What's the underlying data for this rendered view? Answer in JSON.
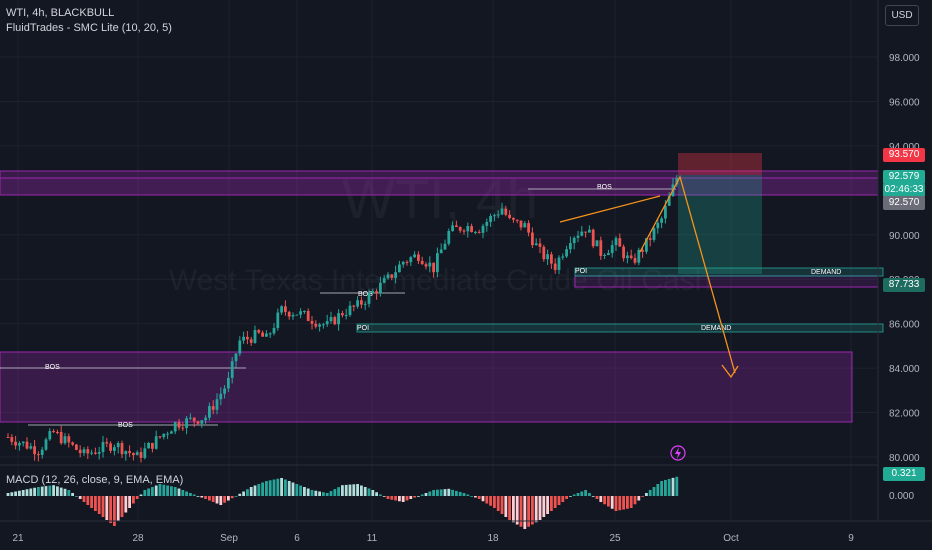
{
  "header": {
    "symbol_line": "WTI, 4h, BLACKBULL",
    "indicator_line": "FluidTrades - SMC Lite  (10, 20, 5)",
    "macd_line": "MACD (12, 26, close, 9, EMA, EMA)",
    "currency_button": "USD"
  },
  "watermark": {
    "main": "WTI, 4h",
    "sub": "West Texas Intermediate Crude Oil Cash"
  },
  "colors": {
    "background": "#131722",
    "up": "#26a69a",
    "down": "#ef5350",
    "zone": "#9c27b0",
    "annotation": "#f7931a",
    "target": "#22ab94",
    "stop": "#f23645"
  },
  "labels": {
    "bos": "BOS",
    "poi": "POI",
    "demand": "DEMAND"
  },
  "price_labels": {
    "stop": "93.570",
    "last_price": "92.579",
    "countdown": "02:46:33",
    "prev": "92.570",
    "demand": "87.733",
    "macd": "0.321"
  },
  "chart_data": {
    "type": "candlestick",
    "y_axis": {
      "ticks": [
        "98.000",
        "96.000",
        "94.000",
        "90.000",
        "88.000",
        "86.000",
        "84.000",
        "82.000",
        "80.000"
      ],
      "range": [
        79.6,
        100.5
      ]
    },
    "x_axis": {
      "ticks": [
        "21",
        "28",
        "Sep",
        "6",
        "11",
        "18",
        "25",
        "Oct",
        "9"
      ]
    },
    "macd": {
      "ticks": [
        "0.000"
      ],
      "last": 0.321
    },
    "trend": [
      {
        "d": 0,
        "p": 80.9
      },
      {
        "d": 2,
        "p": 80.3
      },
      {
        "d": 3,
        "p": 81.1
      },
      {
        "d": 5,
        "p": 80.1
      },
      {
        "d": 7,
        "p": 80.6
      },
      {
        "d": 8.5,
        "p": 80.0
      },
      {
        "d": 11,
        "p": 81.5
      },
      {
        "d": 13,
        "p": 81.8
      },
      {
        "d": 14.5,
        "p": 83.4
      },
      {
        "d": 15.2,
        "p": 85.2
      },
      {
        "d": 16.5,
        "p": 85.5
      },
      {
        "d": 17,
        "p": 85.3
      },
      {
        "d": 18,
        "p": 86.6
      },
      {
        "d": 19,
        "p": 86.5
      },
      {
        "d": 20,
        "p": 86.2
      },
      {
        "d": 21,
        "p": 85.9
      },
      {
        "d": 22,
        "p": 86.5
      },
      {
        "d": 23,
        "p": 86.8
      },
      {
        "d": 25,
        "p": 88.0
      },
      {
        "d": 26,
        "p": 88.8
      },
      {
        "d": 27,
        "p": 89.1
      },
      {
        "d": 28,
        "p": 88.5
      },
      {
        "d": 29,
        "p": 90.1
      },
      {
        "d": 30,
        "p": 90.4
      },
      {
        "d": 31,
        "p": 90.3
      },
      {
        "d": 32.5,
        "p": 91.2
      },
      {
        "d": 33,
        "p": 90.6
      },
      {
        "d": 34,
        "p": 90.4
      },
      {
        "d": 35,
        "p": 89.2
      },
      {
        "d": 36,
        "p": 88.6
      },
      {
        "d": 37,
        "p": 89.9
      },
      {
        "d": 38,
        "p": 90.3
      },
      {
        "d": 39,
        "p": 89.2
      },
      {
        "d": 40,
        "p": 89.6
      },
      {
        "d": 41,
        "p": 88.7
      },
      {
        "d": 42,
        "p": 89.6
      },
      {
        "d": 43,
        "p": 90.7
      },
      {
        "d": 44,
        "p": 92.57
      }
    ],
    "macd_histogram_pattern": [
      0.05,
      0.1,
      0.15,
      0.18,
      0.1,
      -0.1,
      -0.3,
      -0.5,
      -0.2,
      0.1,
      0.2,
      0.15,
      0.05,
      -0.05,
      -0.15,
      0.0,
      0.15,
      0.25,
      0.3,
      0.2,
      0.1,
      0.05,
      0.18,
      0.2,
      0.1,
      -0.05,
      -0.1,
      0.0,
      0.1,
      0.12,
      0.05,
      -0.05,
      -0.2,
      -0.4,
      -0.55,
      -0.4,
      -0.2,
      0.0,
      0.1,
      -0.1,
      -0.25,
      -0.2,
      0.05,
      0.25,
      0.32
    ]
  }
}
